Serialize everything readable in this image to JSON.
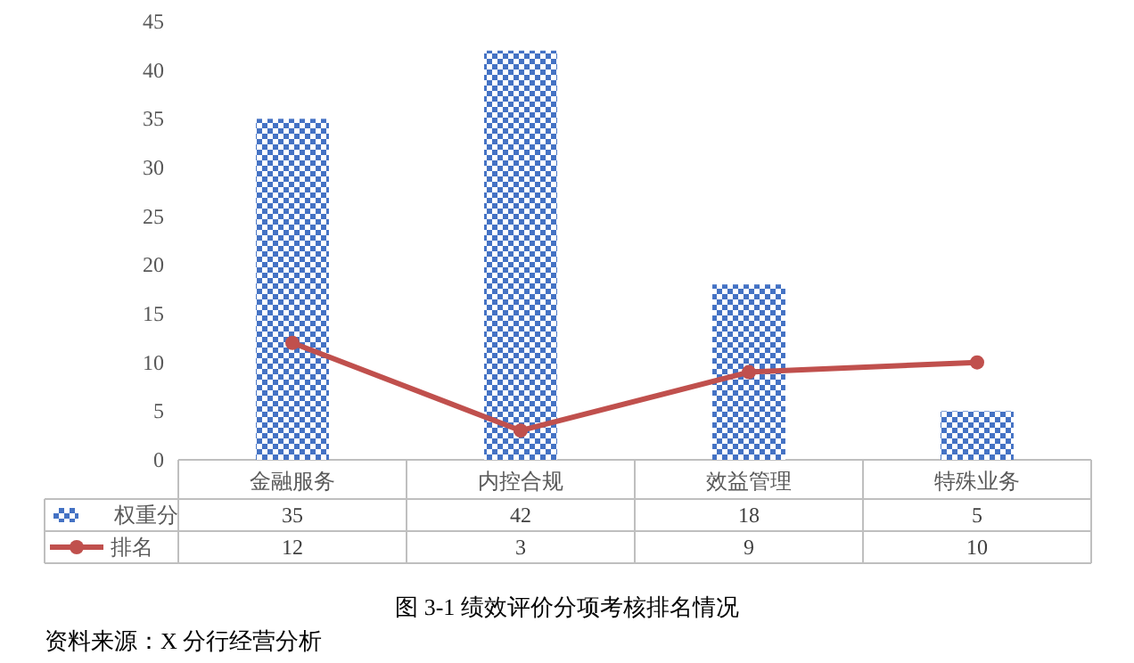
{
  "chart_data": {
    "type": "bar",
    "title": "图 3-1  绩效评价分项考核排名情况",
    "annotations": [
      "资料来源：X 分行经营分析"
    ],
    "categories": [
      "金融服务",
      "内控合规",
      "效益管理",
      "特殊业务"
    ],
    "series": [
      {
        "name": "权重分",
        "color": "#4472c4",
        "values": [
          35,
          42,
          18,
          5
        ]
      },
      {
        "name": "排名",
        "type": "line",
        "color": "#c0504d",
        "values": [
          12,
          3,
          9,
          10
        ],
        "marker": "circle"
      }
    ],
    "ylim": [
      0,
      45
    ],
    "yticks": [
      0,
      5,
      10,
      15,
      20,
      25,
      30,
      35,
      40,
      45
    ],
    "grid": false,
    "legend": "bottom",
    "data_labels": true
  }
}
